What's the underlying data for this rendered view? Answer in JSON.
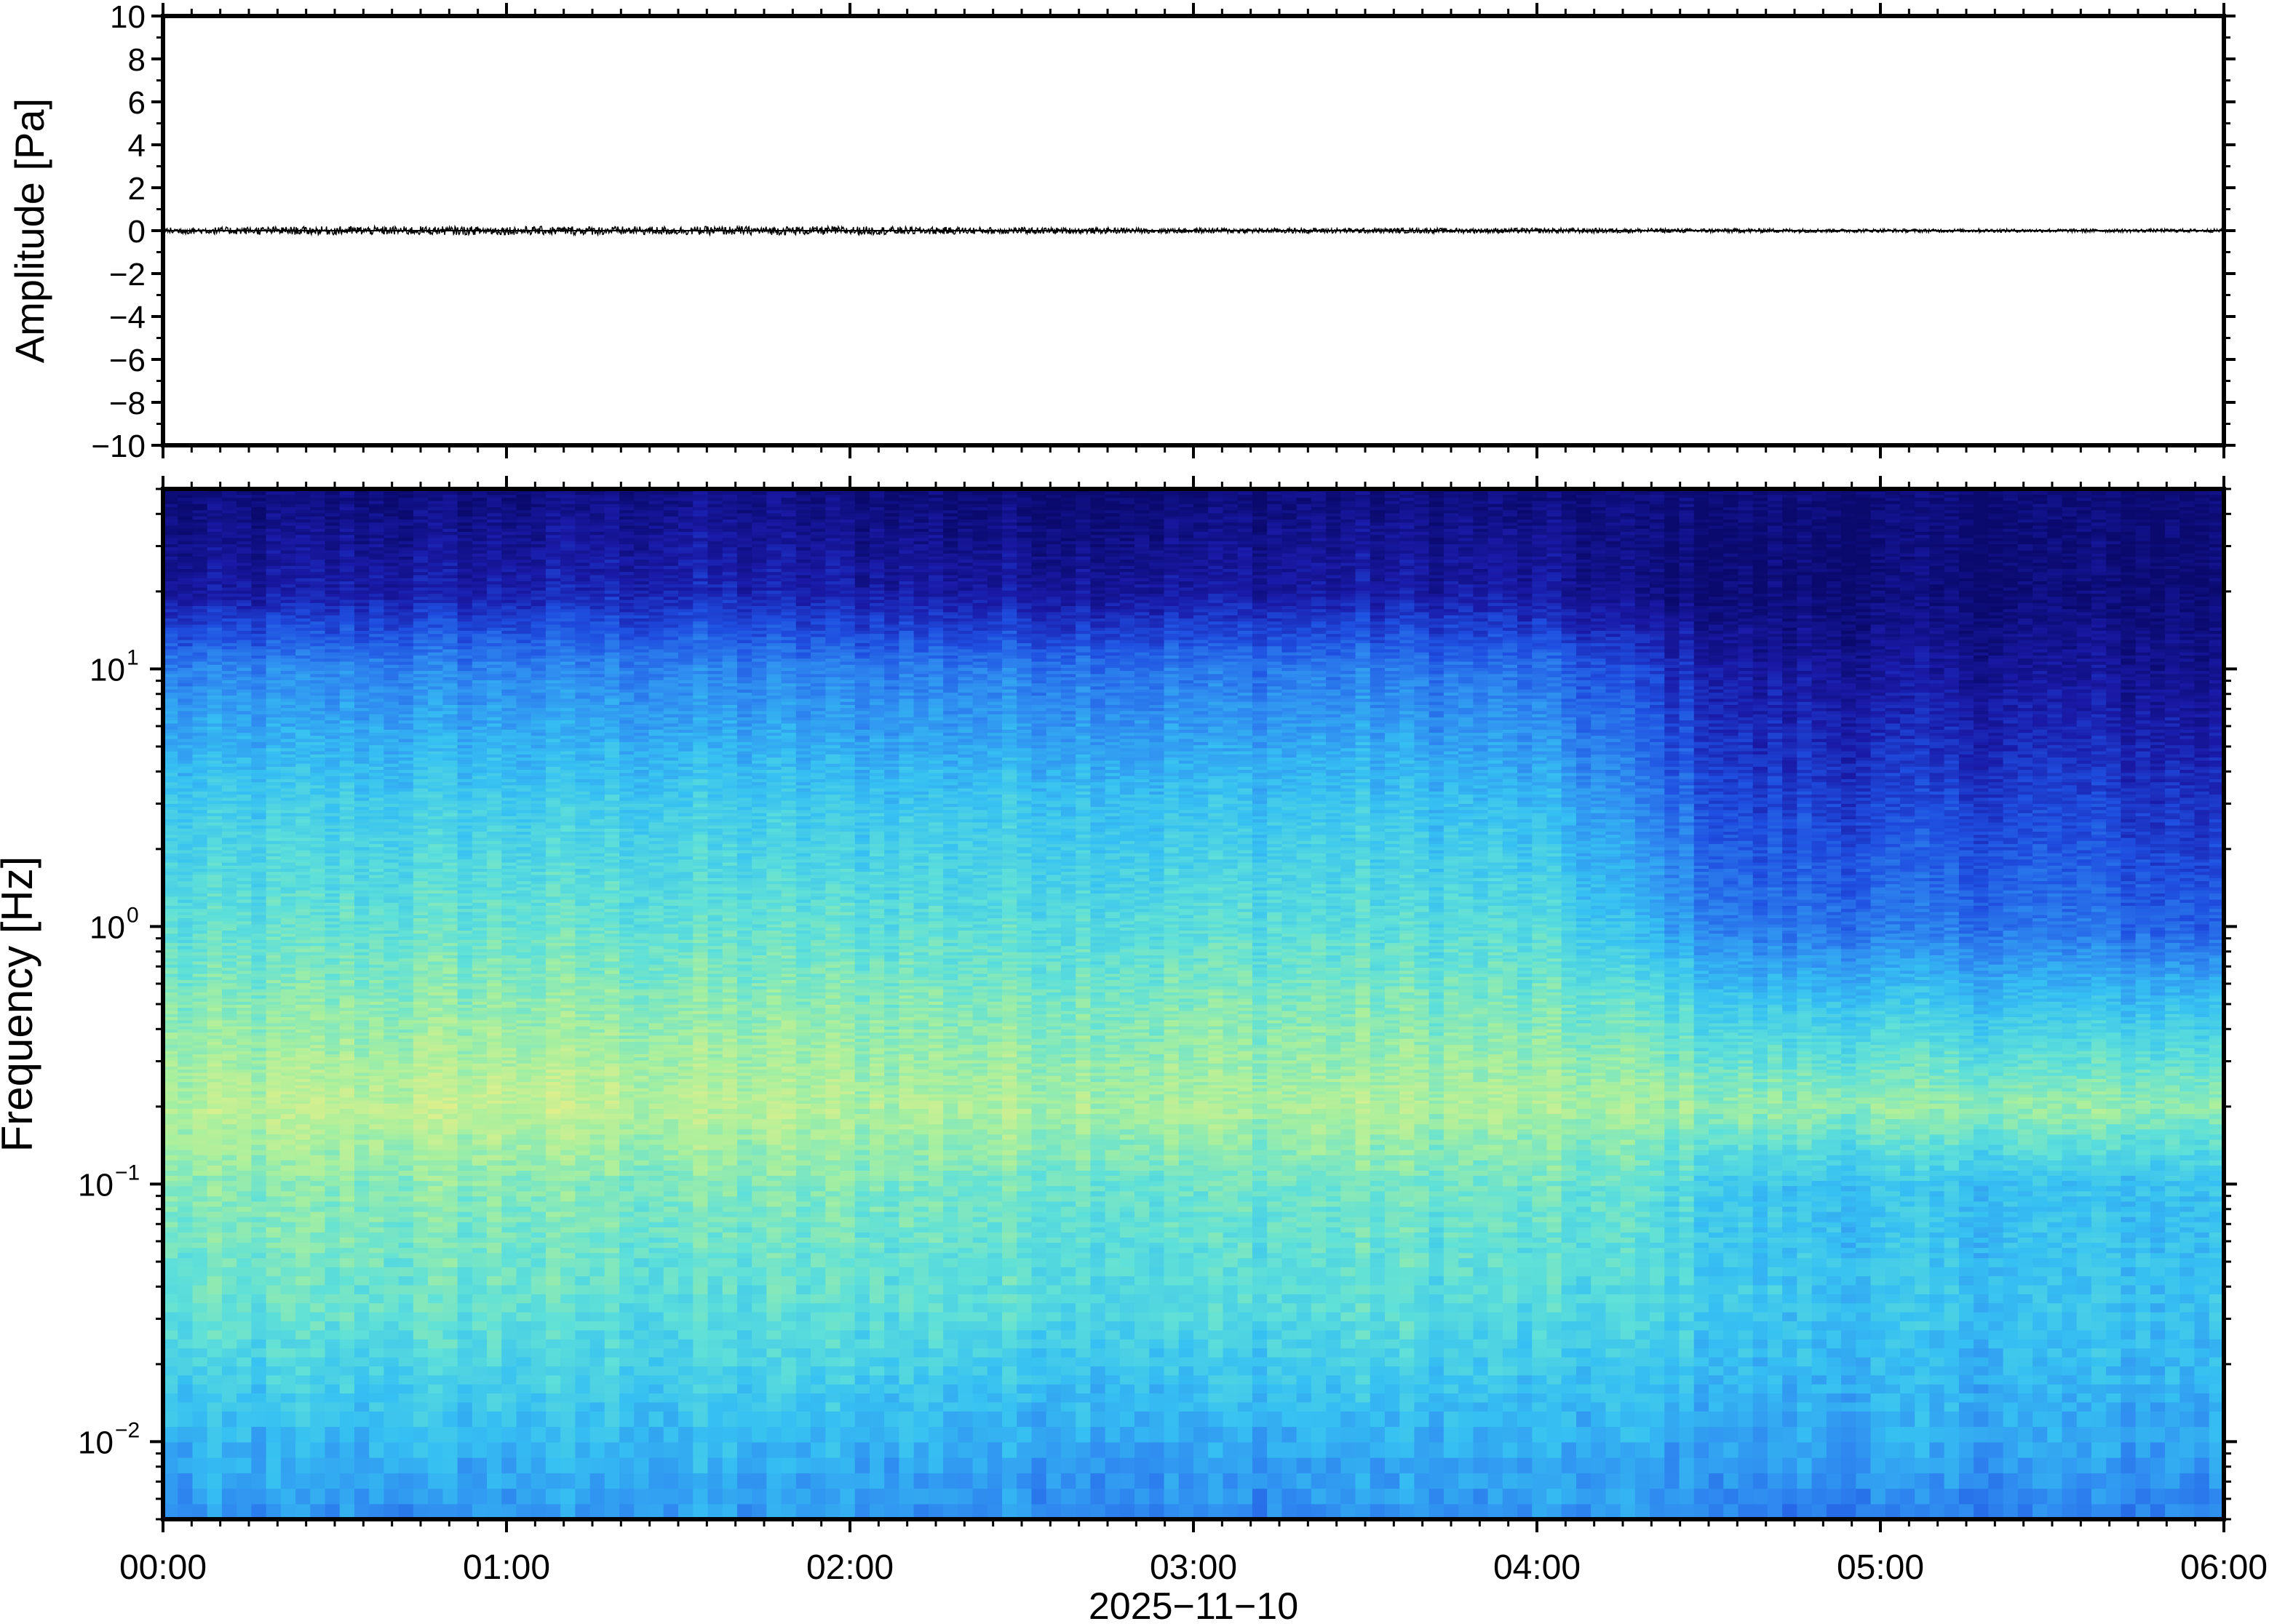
{
  "chart_data": [
    {
      "type": "line",
      "panel": "waveform",
      "ylabel": "Amplitude [Pa]",
      "ylim": [
        -10,
        10
      ],
      "y_ticks": [
        10,
        8,
        6,
        4,
        2,
        0,
        -2,
        -4,
        -6,
        -8,
        -10
      ],
      "y_tick_labels": [
        "10",
        "8",
        "6",
        "4",
        "2",
        "0",
        "−2",
        "−4",
        "−6",
        "−8",
        "−10"
      ],
      "trace_color": "#000000",
      "series": [
        {
          "x_hours": [
            0,
            0.5,
            1,
            1.5,
            2,
            2.5,
            3,
            3.5,
            4,
            4.5,
            5,
            5.5,
            6
          ],
          "envelope_pa": [
            0.15,
            0.2,
            0.2,
            0.2,
            0.2,
            0.15,
            0.12,
            0.12,
            0.12,
            0.1,
            0.08,
            0.08,
            0.08
          ]
        }
      ]
    },
    {
      "type": "heatmap",
      "panel": "spectrogram",
      "ylabel": "Frequency [Hz]",
      "xlabel": "2025−11−10",
      "y_scale": "log",
      "ylim_hz": [
        0.005,
        50
      ],
      "y_tick_values": [
        0.01,
        0.1,
        1,
        10
      ],
      "y_tick_labels": [
        {
          "base": "10",
          "exp": "−2"
        },
        {
          "base": "10",
          "exp": "−1"
        },
        {
          "base": "10",
          "exp": "0"
        },
        {
          "base": "10",
          "exp": "1"
        }
      ],
      "x_range_hours": [
        0,
        6
      ],
      "x_tick_labels": [
        "00:00",
        "01:00",
        "02:00",
        "03:00",
        "04:00",
        "05:00",
        "06:00"
      ],
      "colormap": [
        "#0a0a6e",
        "#1a1aa8",
        "#1f4fe0",
        "#2f8af0",
        "#36c0f2",
        "#5fe0d8",
        "#a8ef9e",
        "#e6ef8a"
      ],
      "time_columns_hours": [
        0.0,
        0.5,
        1.0,
        1.5,
        2.0,
        2.5,
        3.0,
        3.5,
        4.0,
        4.3,
        4.6,
        5.0,
        5.5,
        6.0
      ],
      "frequency_rows_hz": [
        0.005,
        0.01,
        0.03,
        0.1,
        0.2,
        0.5,
        1,
        3,
        10,
        20,
        50
      ],
      "intensity_0to1": [
        [
          0.45,
          0.45,
          0.45,
          0.48,
          0.45,
          0.45,
          0.42,
          0.45,
          0.45,
          0.45,
          0.4,
          0.4,
          0.4,
          0.4
        ],
        [
          0.52,
          0.55,
          0.55,
          0.55,
          0.55,
          0.52,
          0.5,
          0.52,
          0.52,
          0.52,
          0.5,
          0.5,
          0.5,
          0.5
        ],
        [
          0.7,
          0.72,
          0.72,
          0.68,
          0.7,
          0.68,
          0.66,
          0.7,
          0.66,
          0.66,
          0.6,
          0.58,
          0.58,
          0.58
        ],
        [
          0.78,
          0.8,
          0.8,
          0.78,
          0.78,
          0.76,
          0.74,
          0.76,
          0.74,
          0.72,
          0.6,
          0.58,
          0.58,
          0.58
        ],
        [
          0.88,
          0.9,
          0.92,
          0.9,
          0.88,
          0.88,
          0.86,
          0.88,
          0.86,
          0.85,
          0.82,
          0.82,
          0.82,
          0.82
        ],
        [
          0.78,
          0.8,
          0.82,
          0.8,
          0.8,
          0.78,
          0.78,
          0.78,
          0.76,
          0.72,
          0.6,
          0.6,
          0.58,
          0.58
        ],
        [
          0.7,
          0.72,
          0.74,
          0.72,
          0.72,
          0.7,
          0.7,
          0.7,
          0.68,
          0.55,
          0.38,
          0.38,
          0.38,
          0.32
        ],
        [
          0.6,
          0.62,
          0.62,
          0.62,
          0.6,
          0.6,
          0.58,
          0.6,
          0.55,
          0.42,
          0.25,
          0.25,
          0.25,
          0.2
        ],
        [
          0.4,
          0.42,
          0.42,
          0.42,
          0.4,
          0.4,
          0.38,
          0.4,
          0.36,
          0.25,
          0.12,
          0.1,
          0.1,
          0.08
        ],
        [
          0.1,
          0.14,
          0.16,
          0.18,
          0.14,
          0.12,
          0.12,
          0.14,
          0.12,
          0.05,
          0.02,
          0.02,
          0.02,
          0.02
        ],
        [
          0.02,
          0.03,
          0.03,
          0.06,
          0.03,
          0.02,
          0.02,
          0.05,
          0.02,
          0.02,
          0.02,
          0.02,
          0.02,
          0.02
        ]
      ]
    }
  ]
}
